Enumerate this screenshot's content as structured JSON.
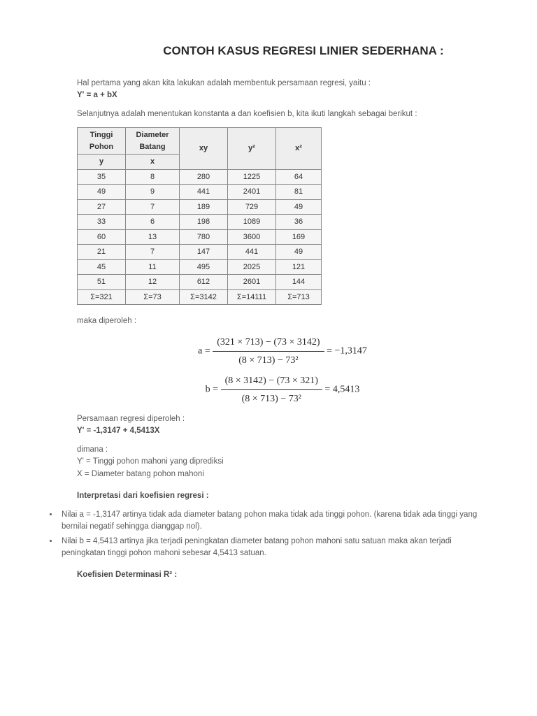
{
  "title": "CONTOH KASUS REGRESI LINIER SEDERHANA :",
  "intro1": "Hal pertama yang akan kita lakukan adalah membentuk persamaan regresi, yaitu :",
  "equation1": "Y' = a + bX",
  "intro2": "Selanjutnya adalah menentukan konstanta a dan koefisien b, kita ikuti langkah sebagai berikut :",
  "table": {
    "header_top": [
      "Tinggi Pohon",
      "Diameter Batang",
      "xy",
      "y²",
      "x²"
    ],
    "header_sub": [
      "y",
      "x",
      "",
      "",
      ""
    ],
    "rows": [
      [
        "35",
        "8",
        "280",
        "1225",
        "64"
      ],
      [
        "49",
        "9",
        "441",
        "2401",
        "81"
      ],
      [
        "27",
        "7",
        "189",
        "729",
        "49"
      ],
      [
        "33",
        "6",
        "198",
        "1089",
        "36"
      ],
      [
        "60",
        "13",
        "780",
        "3600",
        "169"
      ],
      [
        "21",
        "7",
        "147",
        "441",
        "49"
      ],
      [
        "45",
        "11",
        "495",
        "2025",
        "121"
      ],
      [
        "51",
        "12",
        "612",
        "2601",
        "144"
      ],
      [
        "Σ=321",
        "Σ=73",
        "Σ=3142",
        "Σ=14111",
        "Σ=713"
      ]
    ]
  },
  "maka": "maka diperoleh :",
  "formula_a": {
    "lhs": "a =",
    "num": "(321 × 713) − (73 × 3142)",
    "den": "(8 × 713) − 73²",
    "rhs": "= −1,3147"
  },
  "formula_b": {
    "lhs": "b =",
    "num": "(8 × 3142) − (73 × 321)",
    "den": "(8 × 713) − 73²",
    "rhs": "= 4,5413"
  },
  "persamaan_label": "Persamaan regresi diperoleh :",
  "persamaan_eq": "Y' = -1,3147 + 4,5413X",
  "dimana_label": "dimana :",
  "dimana_y": "Y'  = Tinggi pohon mahoni yang diprediksi",
  "dimana_x": "X   = Diameter batang pohon mahoni",
  "interpretasi_head": "Interpretasi dari koefisien regresi :",
  "bullets": [
    "Nilai a = -1,3147 artinya tidak ada diameter batang pohon maka tidak ada tinggi pohon. (karena tidak ada tinggi yang bernilai negatif sehingga dianggap nol).",
    "Nilai b = 4,5413 artinya jika terjadi peningkatan diameter batang pohon mahoni satu satuan maka akan terjadi peningkatan tinggi pohon mahoni sebesar 4,5413 satuan."
  ],
  "koef_det": "Koefisien Determinasi R² :"
}
